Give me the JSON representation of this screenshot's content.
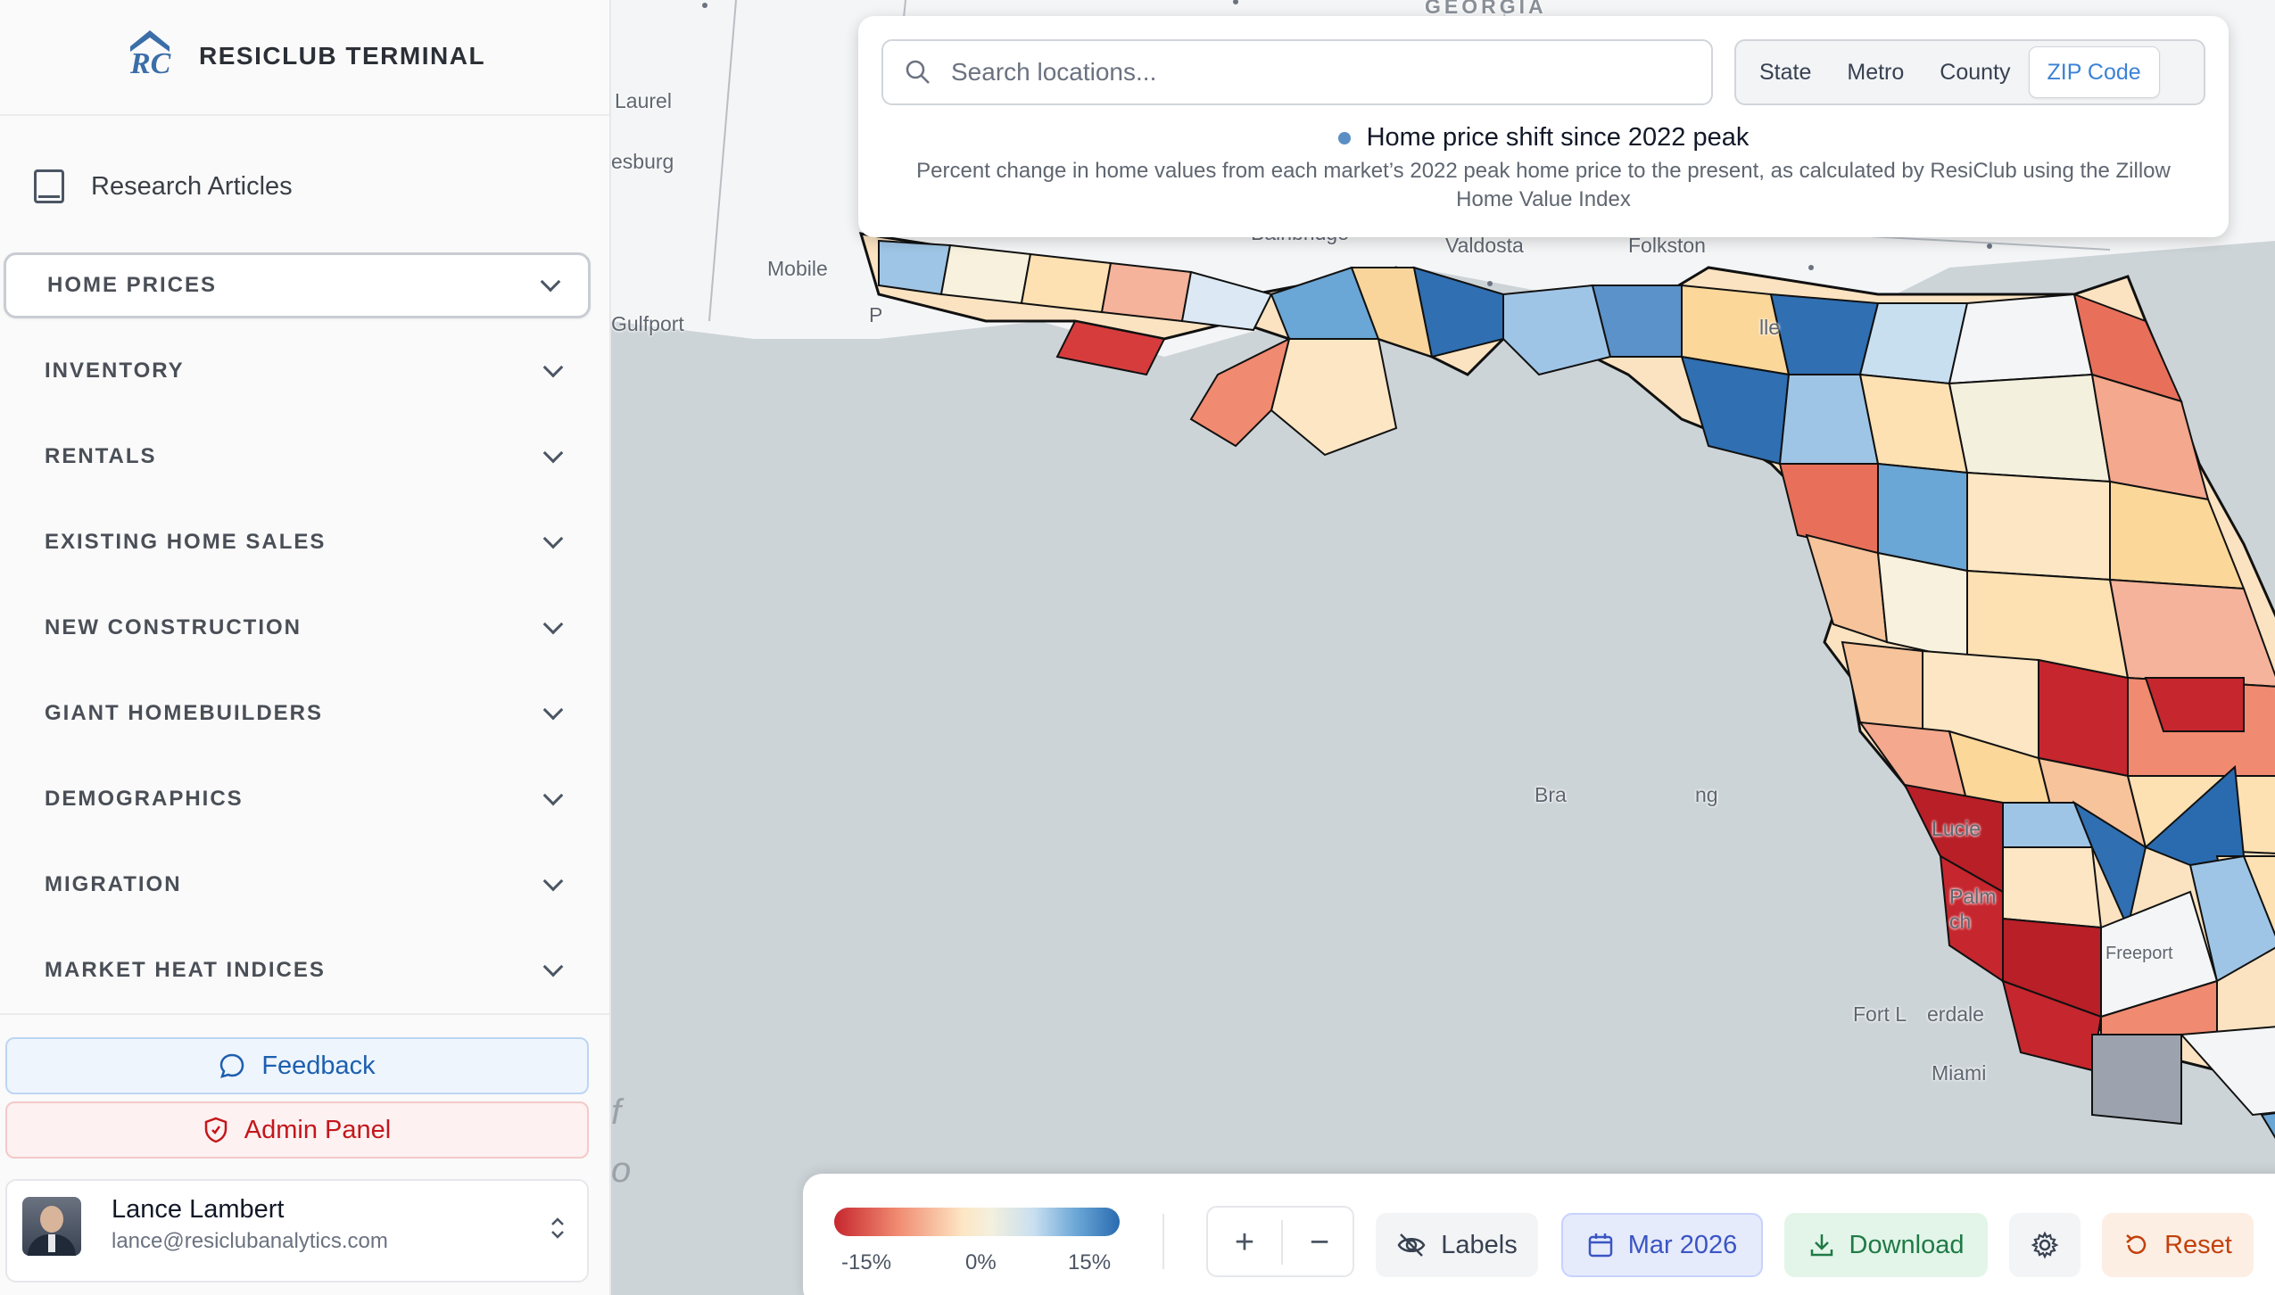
{
  "brand": {
    "name": "RESICLUB TERMINAL"
  },
  "sidebar": {
    "research_label": "Research Articles",
    "items": [
      {
        "label": "HOME PRICES",
        "active": true
      },
      {
        "label": "INVENTORY"
      },
      {
        "label": "RENTALS"
      },
      {
        "label": "EXISTING HOME SALES"
      },
      {
        "label": "NEW CONSTRUCTION"
      },
      {
        "label": "GIANT HOMEBUILDERS"
      },
      {
        "label": "DEMOGRAPHICS"
      },
      {
        "label": "MIGRATION"
      },
      {
        "label": "MARKET HEAT INDICES"
      }
    ],
    "feedback_label": "Feedback",
    "admin_label": "Admin Panel",
    "user": {
      "name": "Lance Lambert",
      "email": "lance@resiclubanalytics.com"
    }
  },
  "search": {
    "placeholder": "Search locations..."
  },
  "geo_levels": {
    "options": [
      "State",
      "Metro",
      "County",
      "ZIP Code"
    ],
    "selected": "ZIP Code"
  },
  "metric": {
    "title": "Home price shift since 2022 peak",
    "description": "Percent change in home values from each market’s 2022 peak home price to the present, as calculated by ResiClub using the Zillow Home Value Index",
    "dot_color": "#5b8fc4"
  },
  "map_labels": {
    "georgia": "GEORGIA",
    "laurel": "Laurel",
    "hattiesburg": "esburg",
    "mobile": "Mobile",
    "gulfport": "Gulfport",
    "p": "P",
    "bainbridge": "Bainbridge",
    "valdosta": "Valdosta",
    "folkston": "Folkston",
    "jacksonville": "lle",
    "bradenton": "Bra",
    "lakewood": "ng",
    "port_st_lucie": "Lucie",
    "palm": "Palm",
    "palm2": "ch",
    "freeport": "Freeport",
    "fort_lauderdale": "Fort L",
    "fort_lauderdale2": "erdale",
    "miami": "Miami",
    "gulf_f": "f",
    "gulf_o": "o"
  },
  "legend": {
    "min": "-15%",
    "mid": "0%",
    "max": "15%",
    "colors": [
      "#c6262e",
      "#f3f0de",
      "#2a6bb0"
    ]
  },
  "toolbar": {
    "zoom_in": "+",
    "zoom_out": "−",
    "labels_label": "Labels",
    "date_label": "Mar 2026",
    "download_label": "Download",
    "reset_label": "Reset"
  },
  "colors": {
    "accent": "#3b82d6",
    "feedback": "#1d5fae",
    "admin": "#c3171c",
    "download": "#1f7a45",
    "reset": "#c2410c"
  }
}
